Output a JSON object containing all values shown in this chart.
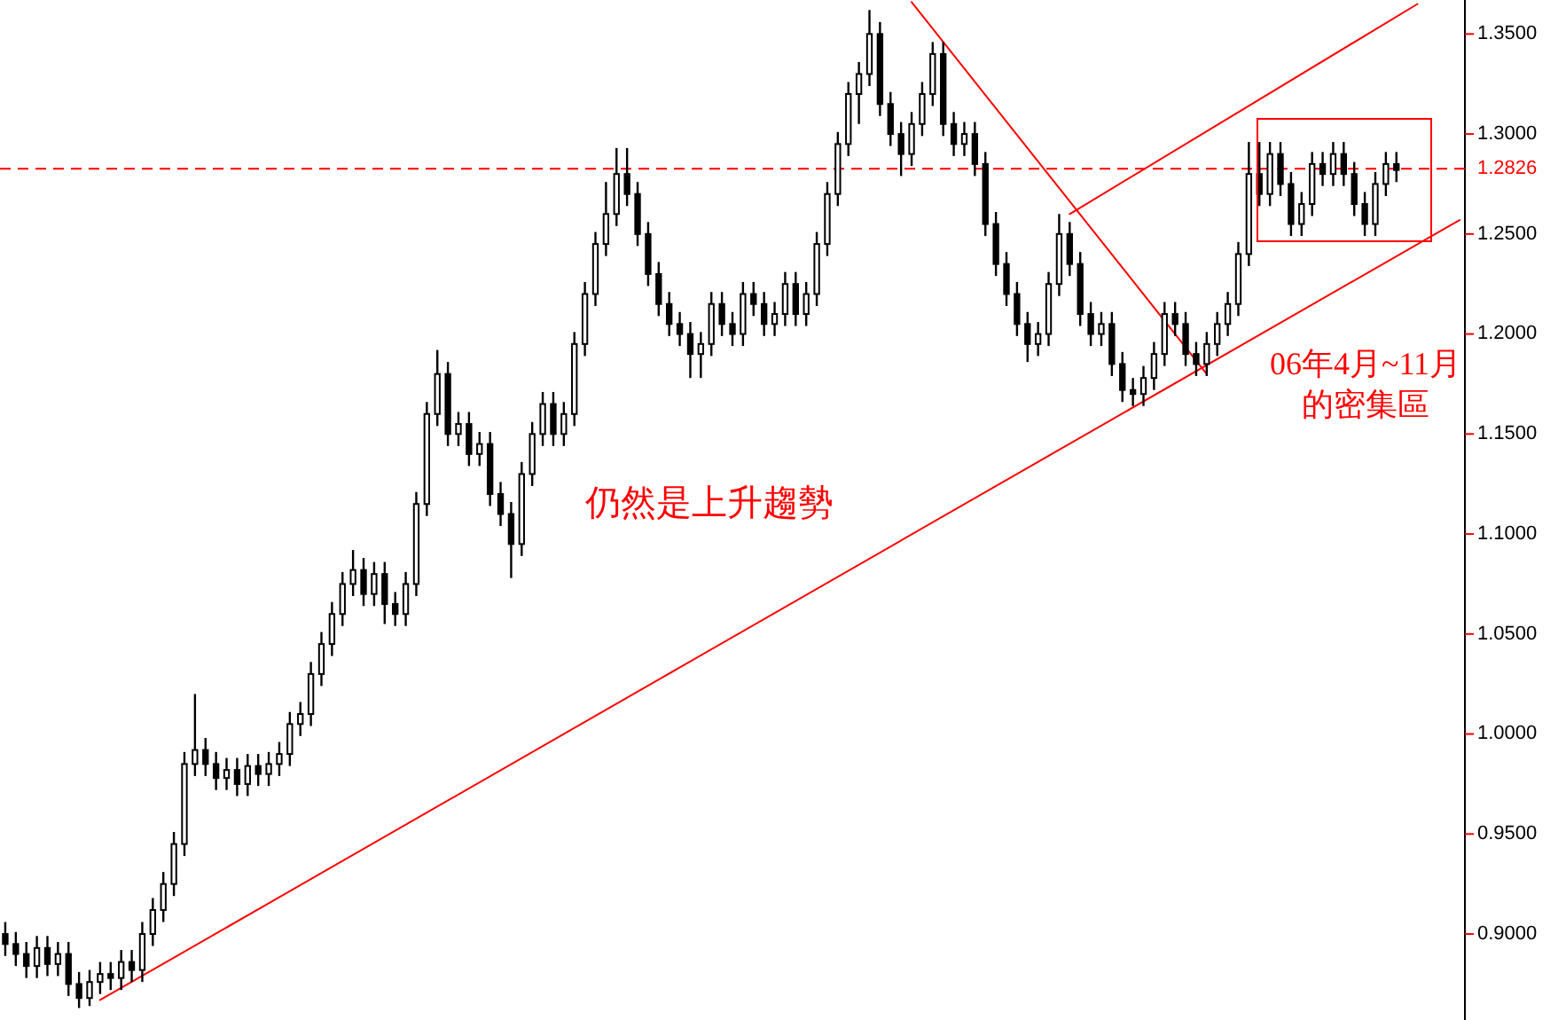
{
  "chart_data": {
    "type": "candlestick",
    "categories": [
      null,
      null,
      null,
      null,
      null,
      null,
      null,
      null,
      null,
      null,
      null,
      null,
      null,
      null,
      null,
      null,
      null,
      null,
      null,
      null,
      null,
      null,
      null,
      null,
      null,
      null,
      null,
      null,
      null,
      null,
      null,
      null,
      null,
      null,
      null,
      null,
      null,
      null,
      null,
      null,
      null,
      null,
      null,
      null,
      null,
      null,
      null,
      null,
      null,
      null,
      null,
      null,
      null,
      null,
      null,
      null,
      null,
      null,
      null,
      null,
      null,
      null,
      null,
      null,
      null,
      null,
      null,
      null,
      null,
      null,
      null,
      null,
      null,
      null,
      null,
      null,
      null,
      null,
      null,
      null,
      null,
      null,
      null,
      null,
      null,
      null,
      null,
      null,
      null,
      null,
      null,
      null,
      null,
      null,
      null,
      null,
      null,
      null,
      null,
      null,
      null,
      null,
      null,
      null,
      null,
      null,
      null,
      null,
      null,
      null,
      null,
      null,
      null,
      null,
      null,
      null,
      null,
      null,
      null,
      null,
      null,
      null,
      null,
      null,
      null,
      null,
      null,
      null,
      null,
      null,
      null,
      null,
      null,
      null,
      null,
      null,
      null,
      null,
      null
    ],
    "color": "#000000",
    "ohlc": [
      [
        0.9,
        0.906,
        0.889,
        0.895
      ],
      [
        0.895,
        0.901,
        0.884,
        0.89
      ],
      [
        0.89,
        0.896,
        0.878,
        0.884
      ],
      [
        0.884,
        0.899,
        0.878,
        0.893
      ],
      [
        0.893,
        0.899,
        0.879,
        0.885
      ],
      [
        0.885,
        0.896,
        0.879,
        0.89
      ],
      [
        0.89,
        0.896,
        0.869,
        0.875
      ],
      [
        0.875,
        0.881,
        0.863,
        0.868
      ],
      [
        0.868,
        0.882,
        0.864,
        0.876
      ],
      [
        0.876,
        0.886,
        0.87,
        0.88
      ],
      [
        0.88,
        0.886,
        0.872,
        0.878
      ],
      [
        0.878,
        0.892,
        0.872,
        0.886
      ],
      [
        0.886,
        0.892,
        0.876,
        0.882
      ],
      [
        0.882,
        0.906,
        0.876,
        0.9
      ],
      [
        0.9,
        0.918,
        0.894,
        0.912
      ],
      [
        0.912,
        0.931,
        0.906,
        0.925
      ],
      [
        0.925,
        0.951,
        0.919,
        0.945
      ],
      [
        0.945,
        0.991,
        0.939,
        0.985
      ],
      [
        0.985,
        1.02,
        0.979,
        0.992
      ],
      [
        0.992,
        0.998,
        0.979,
        0.985
      ],
      [
        0.985,
        0.991,
        0.972,
        0.978
      ],
      [
        0.978,
        0.988,
        0.972,
        0.982
      ],
      [
        0.982,
        0.988,
        0.969,
        0.975
      ],
      [
        0.975,
        0.99,
        0.969,
        0.984
      ],
      [
        0.984,
        0.99,
        0.974,
        0.98
      ],
      [
        0.98,
        0.991,
        0.974,
        0.985
      ],
      [
        0.985,
        0.996,
        0.979,
        0.99
      ],
      [
        0.99,
        1.011,
        0.984,
        1.005
      ],
      [
        1.005,
        1.016,
        0.999,
        1.01
      ],
      [
        1.01,
        1.036,
        1.004,
        1.03
      ],
      [
        1.03,
        1.051,
        1.024,
        1.045
      ],
      [
        1.045,
        1.066,
        1.039,
        1.06
      ],
      [
        1.06,
        1.081,
        1.054,
        1.075
      ],
      [
        1.075,
        1.092,
        1.069,
        1.082
      ],
      [
        1.082,
        1.088,
        1.064,
        1.07
      ],
      [
        1.07,
        1.086,
        1.064,
        1.08
      ],
      [
        1.08,
        1.086,
        1.055,
        1.065
      ],
      [
        1.065,
        1.071,
        1.054,
        1.06
      ],
      [
        1.06,
        1.081,
        1.054,
        1.075
      ],
      [
        1.075,
        1.121,
        1.069,
        1.115
      ],
      [
        1.115,
        1.166,
        1.109,
        1.16
      ],
      [
        1.16,
        1.192,
        1.154,
        1.18
      ],
      [
        1.18,
        1.186,
        1.144,
        1.15
      ],
      [
        1.15,
        1.161,
        1.144,
        1.155
      ],
      [
        1.155,
        1.161,
        1.134,
        1.14
      ],
      [
        1.14,
        1.151,
        1.134,
        1.145
      ],
      [
        1.145,
        1.151,
        1.114,
        1.12
      ],
      [
        1.12,
        1.126,
        1.104,
        1.11
      ],
      [
        1.11,
        1.116,
        1.078,
        1.095
      ],
      [
        1.095,
        1.136,
        1.089,
        1.13
      ],
      [
        1.13,
        1.156,
        1.124,
        1.15
      ],
      [
        1.15,
        1.171,
        1.144,
        1.165
      ],
      [
        1.165,
        1.171,
        1.144,
        1.15
      ],
      [
        1.15,
        1.166,
        1.144,
        1.16
      ],
      [
        1.16,
        1.201,
        1.154,
        1.195
      ],
      [
        1.195,
        1.226,
        1.189,
        1.22
      ],
      [
        1.22,
        1.251,
        1.214,
        1.245
      ],
      [
        1.245,
        1.276,
        1.239,
        1.26
      ],
      [
        1.26,
        1.293,
        1.254,
        1.28
      ],
      [
        1.28,
        1.293,
        1.264,
        1.27
      ],
      [
        1.27,
        1.276,
        1.244,
        1.25
      ],
      [
        1.25,
        1.256,
        1.224,
        1.23
      ],
      [
        1.23,
        1.236,
        1.209,
        1.215
      ],
      [
        1.215,
        1.221,
        1.199,
        1.205
      ],
      [
        1.205,
        1.211,
        1.194,
        1.2
      ],
      [
        1.2,
        1.206,
        1.178,
        1.19
      ],
      [
        1.19,
        1.201,
        1.178,
        1.195
      ],
      [
        1.195,
        1.221,
        1.189,
        1.215
      ],
      [
        1.215,
        1.221,
        1.199,
        1.205
      ],
      [
        1.205,
        1.211,
        1.194,
        1.2
      ],
      [
        1.2,
        1.226,
        1.194,
        1.22
      ],
      [
        1.22,
        1.226,
        1.209,
        1.215
      ],
      [
        1.215,
        1.221,
        1.199,
        1.205
      ],
      [
        1.205,
        1.216,
        1.199,
        1.21
      ],
      [
        1.21,
        1.231,
        1.204,
        1.225
      ],
      [
        1.225,
        1.231,
        1.204,
        1.21
      ],
      [
        1.21,
        1.226,
        1.204,
        1.22
      ],
      [
        1.22,
        1.251,
        1.214,
        1.245
      ],
      [
        1.245,
        1.276,
        1.239,
        1.27
      ],
      [
        1.27,
        1.301,
        1.264,
        1.295
      ],
      [
        1.295,
        1.326,
        1.289,
        1.32
      ],
      [
        1.32,
        1.336,
        1.305,
        1.33
      ],
      [
        1.33,
        1.362,
        1.324,
        1.35
      ],
      [
        1.35,
        1.356,
        1.309,
        1.315
      ],
      [
        1.315,
        1.321,
        1.294,
        1.3
      ],
      [
        1.3,
        1.306,
        1.279,
        1.29
      ],
      [
        1.29,
        1.311,
        1.284,
        1.305
      ],
      [
        1.305,
        1.326,
        1.299,
        1.32
      ],
      [
        1.32,
        1.346,
        1.314,
        1.34
      ],
      [
        1.34,
        1.346,
        1.299,
        1.305
      ],
      [
        1.305,
        1.311,
        1.289,
        1.295
      ],
      [
        1.295,
        1.306,
        1.289,
        1.3
      ],
      [
        1.3,
        1.306,
        1.279,
        1.285
      ],
      [
        1.285,
        1.291,
        1.249,
        1.255
      ],
      [
        1.255,
        1.261,
        1.229,
        1.235
      ],
      [
        1.235,
        1.241,
        1.214,
        1.22
      ],
      [
        1.22,
        1.226,
        1.199,
        1.205
      ],
      [
        1.205,
        1.211,
        1.186,
        1.195
      ],
      [
        1.195,
        1.206,
        1.189,
        1.2
      ],
      [
        1.2,
        1.231,
        1.194,
        1.225
      ],
      [
        1.225,
        1.26,
        1.219,
        1.25
      ],
      [
        1.25,
        1.256,
        1.229,
        1.235
      ],
      [
        1.235,
        1.241,
        1.204,
        1.21
      ],
      [
        1.21,
        1.216,
        1.194,
        1.2
      ],
      [
        1.2,
        1.211,
        1.194,
        1.205
      ],
      [
        1.205,
        1.211,
        1.179,
        1.185
      ],
      [
        1.185,
        1.191,
        1.166,
        1.172
      ],
      [
        1.172,
        1.178,
        1.164,
        1.17
      ],
      [
        1.17,
        1.184,
        1.164,
        1.178
      ],
      [
        1.178,
        1.196,
        1.172,
        1.19
      ],
      [
        1.19,
        1.216,
        1.184,
        1.21
      ],
      [
        1.21,
        1.216,
        1.199,
        1.205
      ],
      [
        1.205,
        1.211,
        1.184,
        1.19
      ],
      [
        1.19,
        1.196,
        1.179,
        1.185
      ],
      [
        1.185,
        1.201,
        1.179,
        1.195
      ],
      [
        1.195,
        1.211,
        1.189,
        1.205
      ],
      [
        1.205,
        1.221,
        1.199,
        1.215
      ],
      [
        1.215,
        1.246,
        1.209,
        1.24
      ],
      [
        1.24,
        1.296,
        1.234,
        1.28
      ],
      [
        1.28,
        1.296,
        1.264,
        1.27
      ],
      [
        1.27,
        1.296,
        1.264,
        1.29
      ],
      [
        1.29,
        1.296,
        1.269,
        1.275
      ],
      [
        1.275,
        1.281,
        1.249,
        1.255
      ],
      [
        1.255,
        1.271,
        1.249,
        1.265
      ],
      [
        1.265,
        1.291,
        1.259,
        1.285
      ],
      [
        1.285,
        1.291,
        1.274,
        1.28
      ],
      [
        1.28,
        1.296,
        1.274,
        1.29
      ],
      [
        1.29,
        1.296,
        1.274,
        1.28
      ],
      [
        1.28,
        1.286,
        1.259,
        1.265
      ],
      [
        1.265,
        1.271,
        1.249,
        1.255
      ],
      [
        1.255,
        1.281,
        1.249,
        1.275
      ],
      [
        1.275,
        1.291,
        1.269,
        1.285
      ],
      [
        1.285,
        1.291,
        1.276,
        1.282
      ],
      null,
      null,
      null,
      null,
      null,
      null
    ],
    "series": [
      {
        "type": "line",
        "color": "#ff0000",
        "values": [
          null,
          null,
          null,
          null,
          null,
          null,
          null,
          null,
          null,
          0.867,
          null,
          null,
          null,
          null,
          null,
          null,
          null,
          null,
          null,
          null,
          null,
          null,
          null,
          null,
          null,
          null,
          null,
          null,
          null,
          null,
          null,
          null,
          null,
          null,
          null,
          null,
          null,
          null,
          null,
          null,
          null,
          null,
          null,
          null,
          null,
          null,
          null,
          null,
          null,
          null,
          null,
          null,
          null,
          null,
          null,
          null,
          null,
          null,
          null,
          null,
          null,
          null,
          null,
          null,
          null,
          null,
          null,
          null,
          null,
          null,
          null,
          null,
          null,
          null,
          null,
          null,
          null,
          null,
          null,
          null,
          null,
          null,
          null,
          null,
          null,
          null,
          null,
          null,
          null,
          null,
          null,
          null,
          null,
          null,
          null,
          null,
          null,
          null,
          null,
          null,
          null,
          null,
          null,
          null,
          null,
          null,
          null,
          null,
          null,
          null,
          null,
          null,
          null,
          null,
          null,
          null,
          null,
          null,
          null,
          null,
          null,
          null,
          null,
          null,
          null,
          null,
          null,
          null,
          null,
          null,
          null,
          null,
          null,
          null,
          null,
          null,
          null,
          null,
          1.257
        ]
      },
      {
        "type": "line",
        "color": "#ff0000",
        "values": [
          null,
          null,
          null,
          null,
          null,
          null,
          null,
          null,
          null,
          null,
          null,
          null,
          null,
          null,
          null,
          null,
          null,
          null,
          null,
          null,
          null,
          null,
          null,
          null,
          null,
          null,
          null,
          null,
          null,
          null,
          null,
          null,
          null,
          null,
          null,
          null,
          null,
          null,
          null,
          null,
          null,
          null,
          null,
          null,
          null,
          null,
          null,
          null,
          null,
          null,
          null,
          null,
          null,
          null,
          null,
          null,
          null,
          null,
          null,
          null,
          null,
          null,
          null,
          null,
          null,
          null,
          null,
          null,
          null,
          null,
          null,
          null,
          null,
          null,
          null,
          null,
          null,
          null,
          null,
          null,
          null,
          null,
          null,
          null,
          null,
          null,
          null,
          null,
          null,
          null,
          null,
          null,
          null,
          null,
          null,
          null,
          null,
          null,
          null,
          null,
          null,
          1.26,
          null,
          null,
          null,
          null,
          null,
          null,
          null,
          null,
          null,
          null,
          null,
          null,
          null,
          null,
          null,
          null,
          null,
          null,
          null,
          null,
          null,
          null,
          null,
          null,
          null,
          null,
          null,
          null,
          null,
          null,
          null,
          null,
          1.365,
          null,
          null,
          null,
          null
        ]
      },
      {
        "type": "line",
        "color": "#ff0000",
        "values": [
          null,
          null,
          null,
          null,
          null,
          null,
          null,
          null,
          null,
          null,
          null,
          null,
          null,
          null,
          null,
          null,
          null,
          null,
          null,
          null,
          null,
          null,
          null,
          null,
          null,
          null,
          null,
          null,
          null,
          null,
          null,
          null,
          null,
          null,
          null,
          null,
          null,
          null,
          null,
          null,
          null,
          null,
          null,
          null,
          null,
          null,
          null,
          null,
          null,
          null,
          null,
          null,
          null,
          null,
          null,
          null,
          null,
          null,
          null,
          null,
          null,
          null,
          null,
          null,
          null,
          null,
          null,
          null,
          null,
          null,
          null,
          null,
          null,
          null,
          null,
          null,
          null,
          null,
          null,
          null,
          null,
          null,
          null,
          null,
          null,
          null,
          1.366,
          null,
          null,
          null,
          null,
          null,
          null,
          null,
          null,
          null,
          null,
          null,
          null,
          null,
          null,
          null,
          null,
          null,
          null,
          null,
          null,
          null,
          null,
          null,
          null,
          null,
          null,
          null,
          1.18,
          null,
          null,
          null,
          null,
          null,
          null,
          null,
          null,
          null,
          null,
          null,
          null,
          null,
          null,
          null,
          null,
          null,
          null,
          null,
          null,
          null,
          null,
          null,
          null
        ]
      }
    ],
    "ylim": [
      0.857,
      1.367
    ],
    "yticks": [
      {
        "value": 0.9,
        "label": "0.9000"
      },
      {
        "value": 0.95,
        "label": "0.9500"
      },
      {
        "value": 1.0,
        "label": "1.0000"
      },
      {
        "value": 1.05,
        "label": "1.0500"
      },
      {
        "value": 1.1,
        "label": "1.1000"
      },
      {
        "value": 1.15,
        "label": "1.1500"
      },
      {
        "value": 1.2,
        "label": "1.2000"
      },
      {
        "value": 1.25,
        "label": "1.2500"
      },
      {
        "value": 1.3,
        "label": "1.3000"
      },
      {
        "value": 1.35,
        "label": "1.3500"
      }
    ],
    "ref_lines": [
      {
        "axis": "y",
        "value": 1.2826,
        "label": "1.2826",
        "color": "#ff0000",
        "line_style": "dashed"
      }
    ],
    "annotations": [
      "仍然是上升趨勢",
      "06年4月~11月",
      "的密集區"
    ],
    "tick_labels": "y"
  }
}
